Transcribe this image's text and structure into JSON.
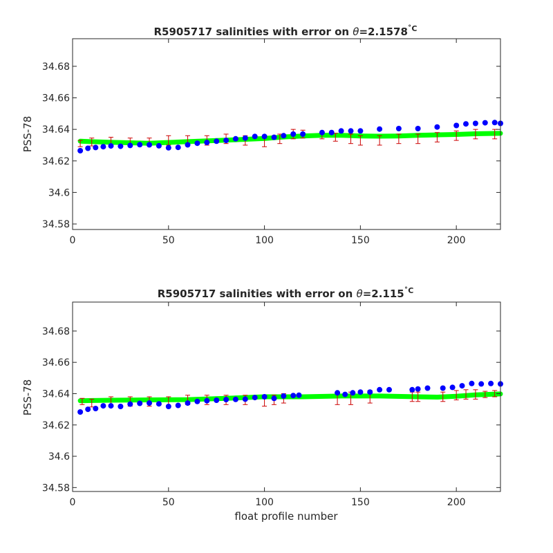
{
  "chart_data": [
    {
      "type": "scatter",
      "title_main": "R5905717 salinities with error on ",
      "title_theta": "θ",
      "title_value": "=2.1578",
      "title_unit": "˚C",
      "ylabel": "PSS-78",
      "xlabel": "",
      "xlim": [
        0,
        223
      ],
      "ylim": [
        34.5765,
        34.6975
      ],
      "xticks": [
        0,
        50,
        100,
        150,
        200
      ],
      "yticks": [
        34.58,
        34.6,
        34.62,
        34.64,
        34.66,
        34.68
      ],
      "ytick_labels": [
        "34.58",
        "34.6",
        "34.62",
        "34.64",
        "34.66",
        "34.68"
      ],
      "grid": false,
      "series": [
        {
          "role": "mapped",
          "color": "#00ff00",
          "x": [
            4,
            20,
            40,
            60,
            80,
            100,
            110,
            120,
            130,
            140,
            150,
            160,
            170,
            180,
            190,
            200,
            210,
            223
          ],
          "y": [
            34.6325,
            34.6318,
            34.6312,
            34.6322,
            34.6332,
            34.6342,
            34.6352,
            34.6358,
            34.6362,
            34.6362,
            34.6358,
            34.6357,
            34.6358,
            34.6362,
            34.6365,
            34.6368,
            34.6372,
            34.6375
          ]
        },
        {
          "role": "error",
          "color": "#cc0000",
          "x": [
            4,
            10,
            20,
            30,
            40,
            50,
            60,
            70,
            80,
            90,
            100,
            108,
            115,
            120,
            130,
            137,
            145,
            150,
            160,
            170,
            180,
            190,
            200,
            210,
            220
          ],
          "y": [
            34.631,
            34.632,
            34.632,
            34.632,
            34.632,
            34.633,
            34.633,
            34.633,
            34.634,
            34.633,
            34.632,
            34.634,
            34.637,
            34.637,
            34.636,
            34.635,
            34.634,
            34.633,
            34.633,
            34.634,
            34.634,
            34.635,
            34.636,
            34.637,
            34.637
          ],
          "err": [
            0.002,
            0.0025,
            0.003,
            0.0025,
            0.0025,
            0.003,
            0.003,
            0.003,
            0.003,
            0.003,
            0.003,
            0.003,
            0.003,
            0.0025,
            0.002,
            0.0025,
            0.003,
            0.003,
            0.003,
            0.003,
            0.003,
            0.003,
            0.003,
            0.003,
            0.003
          ]
        },
        {
          "role": "float",
          "color": "#0000ff",
          "x": [
            4,
            8,
            12,
            16,
            20,
            25,
            30,
            35,
            40,
            45,
            50,
            55,
            60,
            65,
            70,
            75,
            80,
            85,
            90,
            95,
            100,
            105,
            110,
            115,
            120,
            130,
            135,
            140,
            145,
            150,
            160,
            170,
            180,
            190,
            200,
            205,
            210,
            215,
            220,
            223
          ],
          "y": [
            34.6265,
            34.628,
            34.6285,
            34.629,
            34.6295,
            34.6293,
            34.6298,
            34.6303,
            34.6302,
            34.6296,
            34.6283,
            34.6286,
            34.6302,
            34.6312,
            34.6317,
            34.6325,
            34.633,
            34.634,
            34.6345,
            34.6355,
            34.6355,
            34.635,
            34.636,
            34.637,
            34.637,
            34.638,
            34.638,
            34.639,
            34.639,
            34.639,
            34.6402,
            34.6405,
            34.6405,
            34.6415,
            34.6425,
            34.6435,
            34.6438,
            34.6442,
            34.6443,
            34.6438
          ]
        }
      ]
    },
    {
      "type": "scatter",
      "title_main": "R5905717 salinities with error on ",
      "title_theta": "θ",
      "title_value": "=2.115",
      "title_unit": "˚C",
      "ylabel": "PSS-78",
      "xlabel": "float profile number",
      "xlim": [
        0,
        223
      ],
      "ylim": [
        34.5775,
        34.6985
      ],
      "xticks": [
        0,
        50,
        100,
        150,
        200
      ],
      "yticks": [
        34.58,
        34.6,
        34.62,
        34.64,
        34.66,
        34.68
      ],
      "ytick_labels": [
        "34.58",
        "34.6",
        "34.62",
        "34.64",
        "34.66",
        "34.68"
      ],
      "grid": false,
      "series": [
        {
          "role": "mapped",
          "color": "#00ff00",
          "x": [
            4,
            20,
            40,
            60,
            80,
            100,
            120,
            140,
            160,
            180,
            190,
            200,
            210,
            223
          ],
          "y": [
            34.6355,
            34.6358,
            34.636,
            34.6362,
            34.637,
            34.638,
            34.638,
            34.6385,
            34.6385,
            34.638,
            34.6378,
            34.6383,
            34.6392,
            34.6398
          ]
        },
        {
          "role": "error",
          "color": "#cc0000",
          "x": [
            5,
            10,
            20,
            30,
            40,
            50,
            60,
            70,
            80,
            90,
            100,
            105,
            110,
            138,
            145,
            155,
            177,
            180,
            193,
            200,
            205,
            210,
            215,
            220
          ],
          "y": [
            34.635,
            34.634,
            34.635,
            34.635,
            34.635,
            34.635,
            34.636,
            34.636,
            34.636,
            34.636,
            34.635,
            34.636,
            34.637,
            34.637,
            34.637,
            34.638,
            34.638,
            34.638,
            34.638,
            34.639,
            34.6395,
            34.6395,
            34.6395,
            34.64
          ],
          "err": [
            0.002,
            0.0025,
            0.003,
            0.003,
            0.003,
            0.003,
            0.003,
            0.003,
            0.003,
            0.003,
            0.003,
            0.003,
            0.003,
            0.004,
            0.004,
            0.004,
            0.003,
            0.003,
            0.003,
            0.003,
            0.003,
            0.003,
            0.002,
            0.002
          ]
        },
        {
          "role": "float",
          "color": "#0000ff",
          "x": [
            4,
            8,
            12,
            16,
            20,
            25,
            30,
            35,
            40,
            45,
            50,
            55,
            60,
            65,
            70,
            75,
            80,
            85,
            90,
            95,
            100,
            105,
            110,
            115,
            118,
            138,
            142,
            146,
            150,
            155,
            160,
            165,
            177,
            180,
            185,
            193,
            198,
            203,
            208,
            213,
            218,
            223
          ],
          "y": [
            34.6283,
            34.63,
            34.6305,
            34.6322,
            34.6322,
            34.6318,
            34.6333,
            34.6338,
            34.634,
            34.6335,
            34.6318,
            34.6325,
            34.634,
            34.635,
            34.6355,
            34.6358,
            34.6362,
            34.6363,
            34.6365,
            34.6375,
            34.638,
            34.637,
            34.6385,
            34.6388,
            34.639,
            34.6405,
            34.6395,
            34.6405,
            34.641,
            34.641,
            34.6425,
            34.6425,
            34.6425,
            34.643,
            34.6435,
            34.6435,
            34.644,
            34.645,
            34.6465,
            34.6462,
            34.6465,
            34.6462
          ]
        }
      ]
    }
  ]
}
